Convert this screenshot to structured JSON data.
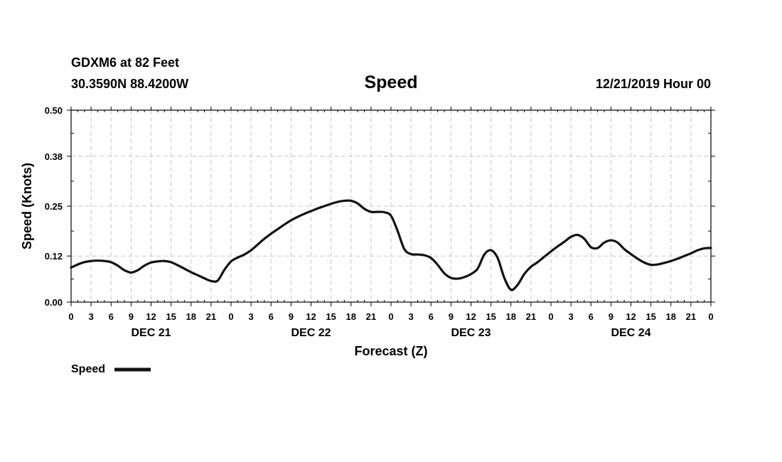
{
  "header": {
    "station": "GDXM6 at 82 Feet",
    "location": "30.3590N 88.4200W",
    "title": "Speed",
    "datetime": "12/21/2019 Hour 00"
  },
  "chart_data": {
    "type": "line",
    "title": "Speed",
    "xlabel": "Forecast (Z)",
    "ylabel": "Speed (Knots)",
    "ylim": [
      0,
      0.5
    ],
    "xlim": [
      0,
      96
    ],
    "grid": true,
    "y_ticks": [
      0.0,
      0.12,
      0.25,
      0.38,
      0.5
    ],
    "y_tick_labels": [
      "0.00",
      "0.12",
      "0.25",
      "0.38",
      "0.50"
    ],
    "x_ticks": [
      0,
      3,
      6,
      9,
      12,
      15,
      18,
      21,
      24,
      27,
      30,
      33,
      36,
      39,
      42,
      45,
      48,
      51,
      54,
      57,
      60,
      63,
      66,
      69,
      72,
      75,
      78,
      81,
      84,
      87,
      90,
      93,
      96
    ],
    "x_tick_labels": [
      "0",
      "3",
      "6",
      "9",
      "12",
      "15",
      "18",
      "21",
      "0",
      "3",
      "6",
      "9",
      "12",
      "15",
      "18",
      "21",
      "0",
      "3",
      "6",
      "9",
      "12",
      "15",
      "18",
      "21",
      "0",
      "3",
      "6",
      "9",
      "12",
      "15",
      "18",
      "21",
      "0"
    ],
    "day_labels": [
      {
        "label": "DEC 21",
        "hour": 12
      },
      {
        "label": "DEC 22",
        "hour": 36
      },
      {
        "label": "DEC 23",
        "hour": 60
      },
      {
        "label": "DEC 24",
        "hour": 84
      }
    ],
    "legend": {
      "position": "bottom-left",
      "label": "Speed"
    },
    "series": [
      {
        "name": "Speed",
        "color": "#111111",
        "x": [
          0,
          1,
          2,
          3,
          4,
          5,
          6,
          7,
          8,
          9,
          10,
          11,
          12,
          13,
          14,
          15,
          16,
          17,
          18,
          19,
          20,
          21,
          22,
          23,
          24,
          25,
          26,
          27,
          28,
          29,
          30,
          31,
          32,
          33,
          34,
          35,
          36,
          37,
          38,
          39,
          40,
          41,
          42,
          43,
          44,
          45,
          46,
          47,
          48,
          49,
          50,
          51,
          52,
          53,
          54,
          55,
          56,
          57,
          58,
          59,
          60,
          61,
          62,
          63,
          64,
          65,
          66,
          67,
          68,
          69,
          70,
          71,
          72,
          73,
          74,
          75,
          76,
          77,
          78,
          79,
          80,
          81,
          82,
          83,
          84,
          85,
          86,
          87,
          88,
          89,
          90,
          91,
          92,
          93,
          94,
          95,
          96
        ],
        "values": [
          0.09,
          0.098,
          0.104,
          0.107,
          0.108,
          0.107,
          0.104,
          0.095,
          0.083,
          0.077,
          0.083,
          0.095,
          0.103,
          0.106,
          0.107,
          0.104,
          0.096,
          0.087,
          0.078,
          0.07,
          0.062,
          0.055,
          0.056,
          0.084,
          0.106,
          0.116,
          0.124,
          0.135,
          0.15,
          0.165,
          0.178,
          0.19,
          0.202,
          0.213,
          0.222,
          0.23,
          0.237,
          0.244,
          0.25,
          0.256,
          0.261,
          0.264,
          0.264,
          0.257,
          0.243,
          0.235,
          0.235,
          0.234,
          0.225,
          0.185,
          0.138,
          0.125,
          0.124,
          0.122,
          0.115,
          0.097,
          0.075,
          0.063,
          0.061,
          0.065,
          0.073,
          0.087,
          0.124,
          0.135,
          0.115,
          0.063,
          0.032,
          0.045,
          0.073,
          0.092,
          0.104,
          0.118,
          0.132,
          0.145,
          0.157,
          0.17,
          0.175,
          0.165,
          0.143,
          0.141,
          0.155,
          0.161,
          0.155,
          0.138,
          0.125,
          0.113,
          0.103,
          0.097,
          0.098,
          0.102,
          0.107,
          0.113,
          0.12,
          0.127,
          0.135,
          0.14,
          0.141
        ]
      }
    ]
  }
}
